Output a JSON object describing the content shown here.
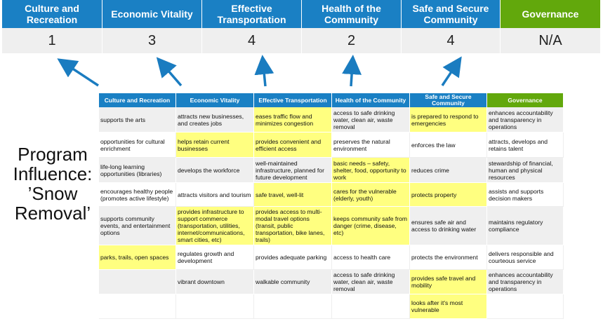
{
  "summary": {
    "headers": [
      "Culture and Recreation",
      "Economic Vitality",
      "Effective Transportation",
      "Health of the Community",
      "Safe and Secure Community",
      "Governance"
    ],
    "values": [
      "1",
      "3",
      "4",
      "2",
      "4",
      "N/A"
    ]
  },
  "side_label": "Program Influence: ’Snow Removal’",
  "colors": {
    "header_blue": "#1a80c4",
    "governance_green": "#62a80c",
    "highlight": "#ffff80",
    "arrow": "#1a7cc0"
  },
  "table": {
    "headers": [
      "Culture and Recreation",
      "Economic Vitality",
      "Effective Transportation",
      "Health of the Community",
      "Safe and Secure Community",
      "Governance"
    ],
    "rows": [
      [
        "supports the arts",
        "attracts new businesses, and creates jobs",
        "eases traffic flow and minimizes congestion",
        "access to safe drinking water, clean air, waste removal",
        "is prepared to respond to emergencies",
        "enhances accountability and transparency in operations"
      ],
      [
        "opportunities for cultural enrichment",
        "helps retain current businesses",
        "provides convenient and efficient access",
        "preserves the natural environment",
        "enforces the law",
        "attracts, develops and retains talent"
      ],
      [
        "life-long learning opportunities (libraries)",
        "develops the workforce",
        "well-maintained infrastructure, planned for future development",
        "basic needs – safety, shelter, food, opportunity to work",
        "reduces crime",
        "stewardship of financial, human and physical resources"
      ],
      [
        "encourages healthy people (promotes active lifestyle)",
        "attracts visitors and tourism",
        "safe travel, well-lit",
        "cares for the vulnerable (elderly, youth)",
        "protects property",
        "assists and supports decision makers"
      ],
      [
        "supports community events, and entertainment options",
        "provides infrastructure to support commerce (transportation, utilities, internet/communications, smart cities, etc)",
        "provides access to multi-modal travel options (transit, public transportation, bike lanes, trails)",
        "keeps community safe from danger (crime, disease, etc)",
        "ensures safe air and access to drinking water",
        "maintains regulatory compliance"
      ],
      [
        "parks, trails, open spaces",
        "regulates growth and development",
        "provides adequate parking",
        "access to health care",
        "protects the environment",
        "delivers responsible and courteous service"
      ],
      [
        "",
        "vibrant downtown",
        "walkable community",
        "access to safe drinking water, clean air, waste removal",
        "provides safe travel and mobility",
        "enhances accountability and transparency in operations"
      ],
      [
        "",
        "",
        "",
        "",
        "looks after it's most vulnerable",
        ""
      ]
    ],
    "highlighted": [
      [
        false,
        false,
        true,
        false,
        true,
        false
      ],
      [
        false,
        true,
        true,
        false,
        false,
        false
      ],
      [
        false,
        false,
        false,
        true,
        false,
        false
      ],
      [
        false,
        false,
        true,
        true,
        true,
        false
      ],
      [
        false,
        true,
        true,
        true,
        false,
        false
      ],
      [
        true,
        false,
        false,
        false,
        false,
        false
      ],
      [
        false,
        false,
        false,
        false,
        true,
        false
      ],
      [
        false,
        false,
        false,
        false,
        true,
        false
      ]
    ]
  }
}
